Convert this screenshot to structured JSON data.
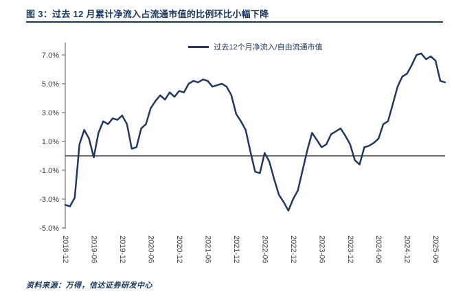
{
  "figure": {
    "title": "图 3：过去 12 月累计净流入占流通市值的比例环比小幅下降",
    "source": "资料来源：万得，信达证券研发中心"
  },
  "chart_data": {
    "type": "line",
    "title": "",
    "legend": "过去12个月净流入/自由流通市值",
    "legend_position": "top-center",
    "grid": false,
    "zero_line": true,
    "ylabel": "",
    "xlabel": "",
    "ylim": [
      -5.5,
      7.7
    ],
    "y_ticks": [
      7,
      5,
      3,
      1,
      -1,
      -3,
      -5
    ],
    "y_tick_labels": [
      "7.0%",
      "5.0%",
      "3.0%",
      "1.0%",
      "-1.0%",
      "-3.0%",
      "-5.0%"
    ],
    "x_tick_labels": [
      "2018-12",
      "2019-06",
      "2019-12",
      "2020-06",
      "2020-12",
      "2021-06",
      "2021-12",
      "2022-06",
      "2022-12",
      "2023-06",
      "2023-12",
      "2024-06",
      "2024-12",
      "2025-06"
    ],
    "x": [
      "2018-12",
      "2019-01",
      "2019-02",
      "2019-03",
      "2019-04",
      "2019-05",
      "2019-06",
      "2019-07",
      "2019-08",
      "2019-09",
      "2019-10",
      "2019-11",
      "2019-12",
      "2020-01",
      "2020-02",
      "2020-03",
      "2020-04",
      "2020-05",
      "2020-06",
      "2020-07",
      "2020-08",
      "2020-09",
      "2020-10",
      "2020-11",
      "2020-12",
      "2021-01",
      "2021-02",
      "2021-03",
      "2021-04",
      "2021-05",
      "2021-06",
      "2021-07",
      "2021-08",
      "2021-09",
      "2021-10",
      "2021-11",
      "2021-12",
      "2022-01",
      "2022-02",
      "2022-03",
      "2022-04",
      "2022-05",
      "2022-06",
      "2022-07",
      "2022-08",
      "2022-09",
      "2022-10",
      "2022-11",
      "2022-12",
      "2023-01",
      "2023-02",
      "2023-03",
      "2023-04",
      "2023-05",
      "2023-06",
      "2023-07",
      "2023-08",
      "2023-09",
      "2023-10",
      "2023-11",
      "2023-12",
      "2024-01",
      "2024-02",
      "2024-03",
      "2024-04",
      "2024-05",
      "2024-06",
      "2024-07",
      "2024-08",
      "2024-09",
      "2024-10",
      "2024-11",
      "2024-12",
      "2025-01",
      "2025-02",
      "2025-03",
      "2025-04",
      "2025-05",
      "2025-06",
      "2025-07",
      "2025-08"
    ],
    "series": [
      {
        "name": "过去12个月净流入/自由流通市值",
        "values": [
          -3.4,
          -3.5,
          -2.9,
          0.8,
          1.8,
          1.2,
          -0.1,
          1.6,
          2.4,
          2.2,
          2.6,
          2.5,
          2.8,
          2.2,
          0.5,
          0.6,
          1.9,
          2.2,
          3.3,
          3.8,
          4.2,
          3.9,
          4.4,
          4.1,
          4.5,
          4.4,
          5.0,
          5.2,
          5.1,
          5.3,
          5.2,
          4.8,
          4.9,
          5.0,
          4.8,
          4.2,
          2.9,
          2.4,
          1.8,
          0.3,
          -1.1,
          -1.2,
          0.2,
          -0.4,
          -1.6,
          -2.7,
          -3.2,
          -3.8,
          -3.0,
          -2.4,
          -1.0,
          0.4,
          1.6,
          1.1,
          0.6,
          0.8,
          1.5,
          1.7,
          1.9,
          1.4,
          0.8,
          -0.3,
          -0.6,
          0.6,
          0.7,
          0.9,
          1.2,
          2.2,
          2.4,
          3.6,
          4.8,
          5.5,
          5.7,
          6.3,
          7.0,
          7.1,
          6.7,
          6.9,
          6.6,
          5.2,
          5.1
        ]
      }
    ],
    "colors": {
      "line": "#1F3864",
      "title": "#17375E",
      "rule": "#17375E",
      "legend_text": "#1F3864",
      "axis": "#595959",
      "tick_text": "#404040",
      "zero_line": "#1A1A1A",
      "source_text": "#17375E",
      "background": "#FFFFFF"
    }
  }
}
